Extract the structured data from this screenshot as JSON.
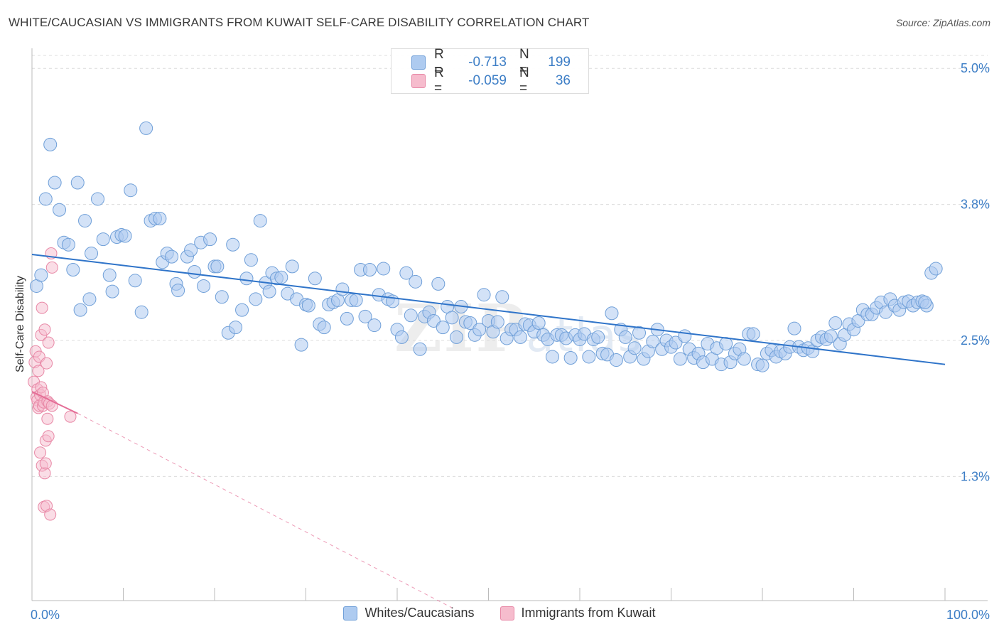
{
  "title": "WHITE/CAUCASIAN VS IMMIGRANTS FROM KUWAIT SELF-CARE DISABILITY CORRELATION CHART",
  "source": "Source: ZipAtlas.com",
  "watermark": {
    "zip": "ZIP",
    "atlas": "atlas"
  },
  "stats": {
    "row1": {
      "r_label": "R =",
      "r_value": "-0.713",
      "n_label": "N =",
      "n_value": "199"
    },
    "row2": {
      "r_label": "R =",
      "r_value": "-0.059",
      "n_label": "N =",
      "n_value": "36"
    }
  },
  "legend": {
    "series1": "Whites/Caucasians",
    "series2": "Immigrants from Kuwait"
  },
  "colors": {
    "blue_fill": "#aecbf0",
    "blue_stroke": "#6f9fd8",
    "blue_line": "#2f74c9",
    "pink_fill": "#f6bccd",
    "pink_stroke": "#e888a6",
    "pink_line": "#e46d96",
    "tick_label": "#3d7ec6",
    "grid": "#dcdcdc"
  },
  "chart_data": {
    "type": "scatter",
    "title": "WHITE/CAUCASIAN VS IMMIGRANTS FROM KUWAIT SELF-CARE DISABILITY CORRELATION CHART",
    "xlabel": "",
    "ylabel": "Self-Care Disability",
    "xlim": [
      0,
      100
    ],
    "ylim": [
      0,
      5.3
    ],
    "x_tick_labels": [
      "0.0%",
      "100.0%"
    ],
    "y_ticks": [
      1.25,
      2.5,
      3.75,
      5.0
    ],
    "y_tick_labels": [
      "1.3%",
      "2.5%",
      "3.8%",
      "5.0%"
    ],
    "grid": "horizontal dashed",
    "legend_position": "bottom-center",
    "series": [
      {
        "name": "Whites/Caucasians",
        "color": "#6f9fd8",
        "trend": {
          "x": [
            0,
            100
          ],
          "y": [
            3.29,
            2.28
          ]
        },
        "points": [
          [
            0.5,
            3.0
          ],
          [
            1,
            3.1
          ],
          [
            1.5,
            3.8
          ],
          [
            2,
            4.3
          ],
          [
            2.5,
            3.95
          ],
          [
            3,
            3.7
          ],
          [
            3.5,
            3.4
          ],
          [
            4,
            3.38
          ],
          [
            4.5,
            3.15
          ],
          [
            5,
            3.95
          ],
          [
            5.3,
            2.78
          ],
          [
            5.8,
            3.6
          ],
          [
            6.3,
            2.88
          ],
          [
            6.5,
            3.3
          ],
          [
            7.2,
            3.8
          ],
          [
            7.8,
            3.43
          ],
          [
            8.5,
            3.1
          ],
          [
            8.8,
            2.95
          ],
          [
            9.3,
            3.45
          ],
          [
            9.8,
            3.47
          ],
          [
            10.2,
            3.46
          ],
          [
            10.8,
            3.88
          ],
          [
            11.3,
            3.05
          ],
          [
            12,
            2.76
          ],
          [
            12.5,
            4.45
          ],
          [
            13,
            3.6
          ],
          [
            13.5,
            3.62
          ],
          [
            14,
            3.62
          ],
          [
            14.3,
            3.22
          ],
          [
            14.8,
            3.3
          ],
          [
            15.3,
            3.27
          ],
          [
            15.8,
            3.02
          ],
          [
            16,
            2.96
          ],
          [
            17,
            3.27
          ],
          [
            17.4,
            3.33
          ],
          [
            17.8,
            3.13
          ],
          [
            18.5,
            3.4
          ],
          [
            18.8,
            3.0
          ],
          [
            19.5,
            3.43
          ],
          [
            20,
            3.18
          ],
          [
            20.3,
            3.18
          ],
          [
            20.8,
            2.9
          ],
          [
            21.5,
            2.57
          ],
          [
            22,
            3.38
          ],
          [
            22.3,
            2.62
          ],
          [
            23,
            2.78
          ],
          [
            23.5,
            3.07
          ],
          [
            24,
            3.24
          ],
          [
            24.5,
            2.88
          ],
          [
            25,
            3.6
          ],
          [
            25.6,
            3.03
          ],
          [
            26,
            2.95
          ],
          [
            26.3,
            3.12
          ],
          [
            26.8,
            3.07
          ],
          [
            27.3,
            3.08
          ],
          [
            28,
            2.93
          ],
          [
            28.5,
            3.18
          ],
          [
            29,
            2.88
          ],
          [
            29.5,
            2.46
          ],
          [
            30,
            2.83
          ],
          [
            30.3,
            2.82
          ],
          [
            31,
            3.07
          ],
          [
            31.5,
            2.65
          ],
          [
            32,
            2.62
          ],
          [
            32.5,
            2.83
          ],
          [
            33,
            2.85
          ],
          [
            33.5,
            2.87
          ],
          [
            34,
            2.97
          ],
          [
            34.5,
            2.7
          ],
          [
            35,
            2.87
          ],
          [
            35.5,
            2.87
          ],
          [
            36,
            3.15
          ],
          [
            36.5,
            2.72
          ],
          [
            37,
            3.15
          ],
          [
            37.5,
            2.64
          ],
          [
            38,
            2.92
          ],
          [
            38.5,
            3.16
          ],
          [
            39,
            2.88
          ],
          [
            39.5,
            2.86
          ],
          [
            40,
            2.6
          ],
          [
            40.5,
            2.53
          ],
          [
            41,
            3.12
          ],
          [
            41.5,
            2.73
          ],
          [
            42,
            3.04
          ],
          [
            42.5,
            2.42
          ],
          [
            43,
            2.72
          ],
          [
            43.5,
            2.76
          ],
          [
            44,
            2.68
          ],
          [
            44.5,
            3.02
          ],
          [
            45,
            2.62
          ],
          [
            45.5,
            2.81
          ],
          [
            46,
            2.71
          ],
          [
            46.5,
            2.53
          ],
          [
            47,
            2.81
          ],
          [
            47.5,
            2.67
          ],
          [
            48,
            2.66
          ],
          [
            48.5,
            2.55
          ],
          [
            49,
            2.6
          ],
          [
            49.5,
            2.92
          ],
          [
            50,
            2.68
          ],
          [
            50.5,
            2.58
          ],
          [
            51,
            2.67
          ],
          [
            51.5,
            2.9
          ],
          [
            52,
            2.52
          ],
          [
            52.5,
            2.6
          ],
          [
            53,
            2.6
          ],
          [
            53.5,
            2.53
          ],
          [
            54,
            2.65
          ],
          [
            54.5,
            2.64
          ],
          [
            55,
            2.58
          ],
          [
            55.5,
            2.66
          ],
          [
            56,
            2.55
          ],
          [
            56.5,
            2.51
          ],
          [
            57,
            2.35
          ],
          [
            57.5,
            2.55
          ],
          [
            58,
            2.55
          ],
          [
            58.5,
            2.52
          ],
          [
            59,
            2.34
          ],
          [
            59.5,
            2.55
          ],
          [
            60,
            2.51
          ],
          [
            60.5,
            2.56
          ],
          [
            61,
            2.35
          ],
          [
            61.5,
            2.51
          ],
          [
            62,
            2.53
          ],
          [
            62.5,
            2.38
          ],
          [
            63,
            2.37
          ],
          [
            63.5,
            2.75
          ],
          [
            64,
            2.32
          ],
          [
            64.5,
            2.6
          ],
          [
            65,
            2.53
          ],
          [
            65.5,
            2.35
          ],
          [
            66,
            2.43
          ],
          [
            66.5,
            2.57
          ],
          [
            67,
            2.33
          ],
          [
            67.5,
            2.4
          ],
          [
            68,
            2.49
          ],
          [
            68.5,
            2.6
          ],
          [
            69,
            2.42
          ],
          [
            69.5,
            2.5
          ],
          [
            70,
            2.44
          ],
          [
            70.5,
            2.48
          ],
          [
            71,
            2.33
          ],
          [
            71.5,
            2.54
          ],
          [
            72,
            2.42
          ],
          [
            72.5,
            2.34
          ],
          [
            73,
            2.38
          ],
          [
            73.5,
            2.3
          ],
          [
            74,
            2.47
          ],
          [
            74.5,
            2.33
          ],
          [
            75,
            2.43
          ],
          [
            75.5,
            2.28
          ],
          [
            76,
            2.47
          ],
          [
            76.5,
            2.3
          ],
          [
            77,
            2.38
          ],
          [
            77.5,
            2.42
          ],
          [
            78,
            2.33
          ],
          [
            78.5,
            2.56
          ],
          [
            79,
            2.56
          ],
          [
            79.5,
            2.28
          ],
          [
            80,
            2.27
          ],
          [
            80.5,
            2.38
          ],
          [
            81,
            2.41
          ],
          [
            81.5,
            2.35
          ],
          [
            82,
            2.4
          ],
          [
            82.5,
            2.38
          ],
          [
            83,
            2.44
          ],
          [
            83.5,
            2.61
          ],
          [
            84,
            2.44
          ],
          [
            84.5,
            2.41
          ],
          [
            85,
            2.43
          ],
          [
            85.5,
            2.4
          ],
          [
            86,
            2.5
          ],
          [
            86.5,
            2.53
          ],
          [
            87,
            2.51
          ],
          [
            87.5,
            2.54
          ],
          [
            88,
            2.66
          ],
          [
            88.5,
            2.47
          ],
          [
            89,
            2.55
          ],
          [
            89.5,
            2.65
          ],
          [
            90,
            2.6
          ],
          [
            90.5,
            2.68
          ],
          [
            91,
            2.78
          ],
          [
            91.5,
            2.74
          ],
          [
            92,
            2.74
          ],
          [
            92.5,
            2.8
          ],
          [
            93,
            2.85
          ],
          [
            93.5,
            2.76
          ],
          [
            94,
            2.88
          ],
          [
            94.5,
            2.82
          ],
          [
            95,
            2.78
          ],
          [
            95.5,
            2.85
          ],
          [
            96,
            2.86
          ],
          [
            96.5,
            2.82
          ],
          [
            97,
            2.85
          ],
          [
            97.5,
            2.86
          ],
          [
            98,
            2.82
          ],
          [
            98.5,
            3.12
          ],
          [
            99,
            3.16
          ],
          [
            97.8,
            2.85
          ]
        ]
      },
      {
        "name": "Immigrants from Kuwait",
        "color": "#e888a6",
        "trend": {
          "x": [
            0,
            5
          ],
          "y": [
            2.03,
            1.83
          ]
        },
        "trend_extension": {
          "x": [
            5,
            47
          ],
          "y": [
            1.83,
            0
          ]
        },
        "points": [
          [
            0.2,
            2.12
          ],
          [
            0.3,
            2.3
          ],
          [
            0.4,
            2.4
          ],
          [
            0.5,
            1.98
          ],
          [
            0.6,
            2.05
          ],
          [
            0.6,
            1.95
          ],
          [
            0.7,
            1.88
          ],
          [
            0.7,
            2.22
          ],
          [
            0.8,
            1.9
          ],
          [
            0.8,
            2.35
          ],
          [
            0.9,
            2.0
          ],
          [
            0.9,
            1.47
          ],
          [
            1.0,
            2.55
          ],
          [
            1.0,
            2.07
          ],
          [
            1.1,
            1.35
          ],
          [
            1.1,
            2.8
          ],
          [
            1.2,
            1.9
          ],
          [
            1.2,
            2.02
          ],
          [
            1.3,
            1.93
          ],
          [
            1.3,
            0.97
          ],
          [
            1.4,
            1.28
          ],
          [
            1.4,
            2.6
          ],
          [
            1.5,
            1.58
          ],
          [
            1.5,
            1.37
          ],
          [
            1.6,
            0.98
          ],
          [
            1.6,
            2.29
          ],
          [
            1.7,
            1.94
          ],
          [
            1.7,
            1.78
          ],
          [
            1.8,
            1.62
          ],
          [
            1.8,
            2.48
          ],
          [
            1.9,
            1.92
          ],
          [
            2.0,
            0.9
          ],
          [
            2.1,
            3.3
          ],
          [
            2.2,
            3.17
          ],
          [
            2.2,
            1.9
          ],
          [
            4.2,
            1.8
          ]
        ]
      }
    ]
  }
}
